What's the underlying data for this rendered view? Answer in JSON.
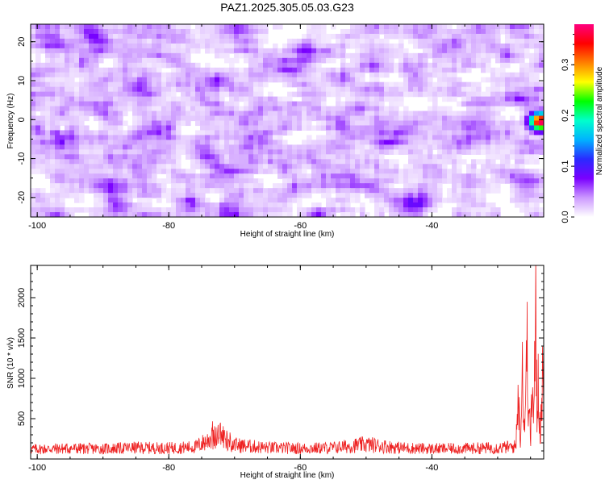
{
  "title": "PAZ1.2025.305.05.03.G23",
  "chart_data": [
    {
      "type": "heatmap",
      "xlabel": "Height of straight line (km)",
      "ylabel": "Frequency (Hz)",
      "xlim": [
        -101,
        -23
      ],
      "ylim": [
        -25,
        24.5
      ],
      "x_ticks": [
        -100,
        -80,
        -60,
        -40
      ],
      "y_ticks": [
        -20,
        -10,
        0,
        10,
        20
      ],
      "grid": false,
      "colorbar": {
        "label": "Normalized spectral amplitude",
        "range": [
          0,
          0.38
        ],
        "ticks": [
          0.0,
          0.1,
          0.2,
          0.3
        ],
        "colors": [
          "#ffffff",
          "#cc99ff",
          "#7a00ff",
          "#2a2aff",
          "#00b2ff",
          "#00ffcc",
          "#00ff00",
          "#ffff00",
          "#ff8000",
          "#ff0000",
          "#ff0080"
        ]
      },
      "description_values": {
        "background_level": 0.03,
        "typical_peak": 0.08,
        "hotspot": {
          "x": -23.5,
          "y": -0.5,
          "value": 0.38
        }
      }
    },
    {
      "type": "line",
      "xlabel": "Height of straight line (km)",
      "ylabel": "SNR (10 * v/v)",
      "xlim": [
        -101,
        -23
      ],
      "ylim": [
        0,
        2400
      ],
      "x_ticks": [
        -100,
        -80,
        -60,
        -40
      ],
      "y_ticks": [
        500,
        1000,
        1500,
        2000
      ],
      "color": "#ee2222",
      "grid": false,
      "series": [
        {
          "x": [
            -101,
            -95,
            -90,
            -85,
            -80,
            -76,
            -74,
            -72,
            -70,
            -65,
            -60,
            -55,
            -50,
            -45,
            -40,
            -35,
            -30,
            -28,
            -27.2,
            -27,
            -26.5,
            -26.2,
            -26,
            -25.5,
            -25,
            -24.8,
            -24.5,
            -24.2,
            -24,
            -23.8,
            -23.5,
            -23.2,
            -23
          ],
          "values": [
            120,
            130,
            125,
            140,
            135,
            150,
            250,
            320,
            180,
            140,
            130,
            140,
            190,
            140,
            125,
            130,
            140,
            150,
            160,
            1250,
            300,
            1950,
            400,
            1900,
            200,
            1200,
            700,
            2400,
            600,
            1500,
            300,
            1700,
            600
          ]
        }
      ]
    }
  ]
}
